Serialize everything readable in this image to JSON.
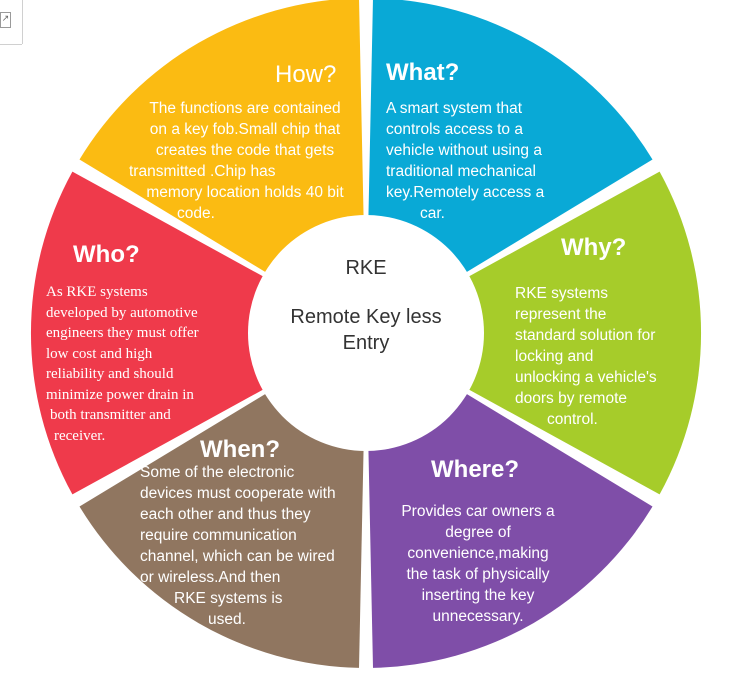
{
  "center": {
    "acronym": "RKE",
    "full_name_line1": "Remote Key less",
    "full_name_line2": "Entry"
  },
  "colors": {
    "how": "#fbbb12",
    "what": "#09a9d6",
    "why": "#a6cc2a",
    "where": "#7f4ea8",
    "when": "#907660",
    "who": "#ef3a4b",
    "hub": "#ffffff",
    "gap": "#ffffff"
  },
  "segments": {
    "how": {
      "title": "How?",
      "lines": [
        "The functions are contained",
        "on a key fob.Small chip that",
        "creates the code that gets",
        "transmitted .Chip has",
        "memory location holds 40 bit",
        "code."
      ]
    },
    "what": {
      "title": "What?",
      "lines": [
        "A smart system that",
        "controls access to a",
        "vehicle without using a",
        "traditional mechanical",
        "key.Remotely access a",
        "car."
      ]
    },
    "why": {
      "title": "Why?",
      "lines": [
        "RKE systems",
        "represent the",
        "standard solution for",
        "locking and",
        "unlocking a vehicle's",
        "doors by remote",
        "control."
      ]
    },
    "where": {
      "title": "Where?",
      "lines": [
        "Provides car owners a",
        "degree of",
        "convenience,making",
        "the task of physically",
        "inserting the key",
        "unnecessary."
      ]
    },
    "when": {
      "title": "When?",
      "lines": [
        "Some of the electronic",
        "devices must cooperate with",
        "each other and thus they",
        "require communication",
        "channel, which can be wired",
        "or wireless.And then",
        "RKE  systems is",
        "used."
      ]
    },
    "who": {
      "title": "Who?",
      "lines": [
        "As RKE systems",
        "developed by automotive",
        "engineers they must offer",
        "low cost and high",
        "reliability and should",
        "minimize power drain in",
        "both transmitter and",
        "receiver."
      ]
    }
  }
}
